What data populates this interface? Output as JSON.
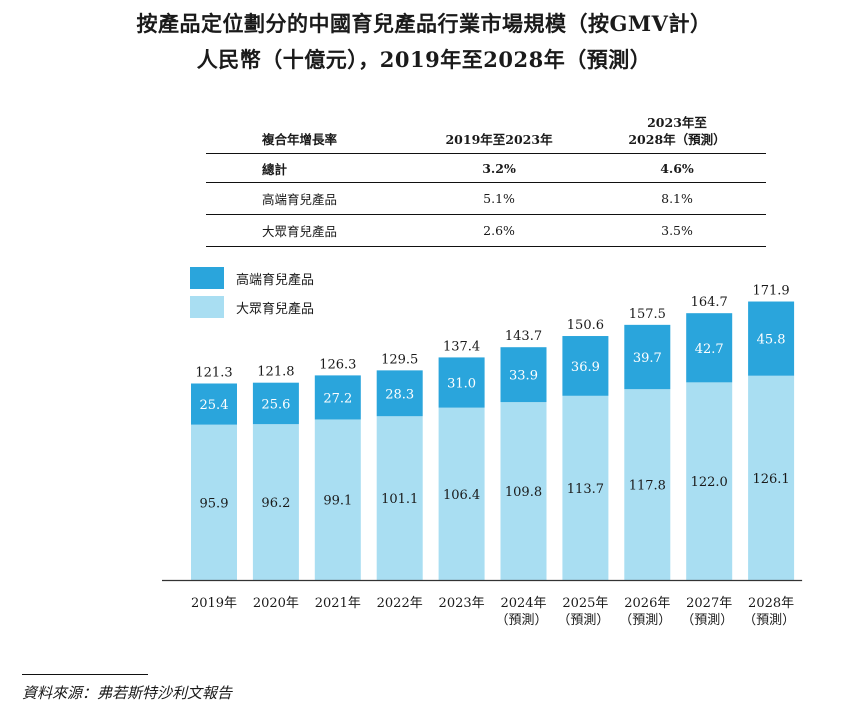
{
  "title_line1": "按產品定位劃分的中國育兒產品行業市場規模（按GMV計）",
  "title_line2": "人民幣（十億元），2019年至2028年（預測）",
  "cagr_table": {
    "header": {
      "label": "複合年增長率",
      "period1": "2019年至2023年",
      "period2_line1": "2023年至",
      "period2_line2": "2028年（預測）"
    },
    "rows": [
      {
        "label": "總計",
        "v1": "3.2%",
        "v2": "4.6%"
      },
      {
        "label": "高端育兒產品",
        "v1": "5.1%",
        "v2": "8.1%"
      },
      {
        "label": "大眾育兒產品",
        "v1": "2.6%",
        "v2": "3.5%"
      }
    ]
  },
  "legend": {
    "premium": "高端育兒產品",
    "mass": "大眾育兒產品"
  },
  "colors": {
    "premium": "#2aa5dc",
    "mass": "#a9def2",
    "axis": "#333333"
  },
  "source": "資料來源：弗若斯特沙利文報告",
  "chart_data": {
    "type": "bar",
    "stacked": true,
    "title": "按產品定位劃分的中國育兒產品行業市場規模（按GMV計）",
    "ylabel": "人民幣（十億元）",
    "ylim": [
      0,
      180
    ],
    "categories": [
      "2019年",
      "2020年",
      "2021年",
      "2022年",
      "2023年",
      "2024年",
      "2025年",
      "2026年",
      "2027年",
      "2028年"
    ],
    "category_notes": [
      "",
      "",
      "",
      "",
      "",
      "（預測）",
      "（預測）",
      "（預測）",
      "（預測）",
      "（預測）"
    ],
    "series": [
      {
        "name": "大眾育兒產品",
        "values": [
          95.9,
          96.2,
          99.1,
          101.1,
          106.4,
          109.8,
          113.7,
          117.8,
          122.0,
          126.1
        ]
      },
      {
        "name": "高端育兒產品",
        "values": [
          25.4,
          25.6,
          27.2,
          28.3,
          31.0,
          33.9,
          36.9,
          39.7,
          42.7,
          45.8
        ]
      }
    ],
    "totals": [
      121.3,
      121.8,
      126.3,
      129.5,
      137.4,
      143.7,
      150.6,
      157.5,
      164.7,
      171.9
    ]
  }
}
